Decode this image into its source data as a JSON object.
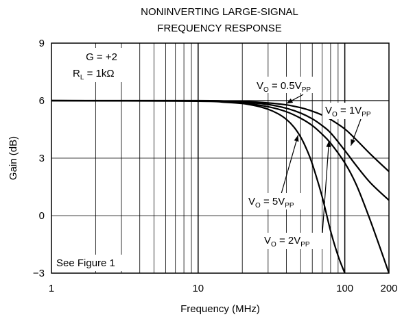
{
  "chart_data": {
    "type": "line",
    "title": [
      "NONINVERTING LARGE-SIGNAL",
      "FREQUENCY RESPONSE"
    ],
    "xlabel": "Frequency (MHz)",
    "ylabel": "Gain (dB)",
    "x_scale": "log",
    "xlim": [
      1,
      200
    ],
    "ylim": [
      -3,
      9
    ],
    "x_ticks": [
      1,
      10,
      100,
      200
    ],
    "x_tick_labels": [
      "1",
      "10",
      "100",
      "200"
    ],
    "y_ticks": [
      -3,
      0,
      3,
      6,
      9
    ],
    "y_tick_labels": [
      "−3",
      "0",
      "3",
      "6",
      "9"
    ],
    "grid": true,
    "annotations": {
      "gain": "G = +2",
      "load_main": "R",
      "load_sub": "L",
      "load_value": " = 1kΩ",
      "figure_ref": "See Figure 1"
    },
    "series": [
      {
        "name": "0.5",
        "label_main": "V",
        "label_sub1": "O",
        "label_mid": " = 0.5V",
        "label_sub2": "PP",
        "x": [
          1,
          10,
          15,
          20,
          30,
          40,
          50,
          60,
          70,
          80,
          100,
          120,
          150,
          200
        ],
        "y": [
          6.0,
          6.0,
          5.98,
          5.96,
          5.88,
          5.78,
          5.63,
          5.45,
          5.25,
          5.02,
          4.52,
          3.95,
          3.2,
          2.3
        ]
      },
      {
        "name": "1",
        "label_main": "V",
        "label_sub1": "O",
        "label_mid": " = 1V",
        "label_sub2": "PP",
        "x": [
          1,
          10,
          15,
          20,
          30,
          40,
          50,
          60,
          70,
          80,
          100,
          120,
          150,
          200
        ],
        "y": [
          6.0,
          5.99,
          5.96,
          5.92,
          5.8,
          5.6,
          5.35,
          5.05,
          4.7,
          4.32,
          3.4,
          2.6,
          1.7,
          0.8
        ]
      },
      {
        "name": "2",
        "label_main": "V",
        "label_sub1": "O",
        "label_mid": " = 2V",
        "label_sub2": "PP",
        "x": [
          1,
          10,
          15,
          20,
          30,
          40,
          50,
          60,
          70,
          80,
          100,
          120,
          150,
          200
        ],
        "y": [
          6.0,
          5.98,
          5.94,
          5.88,
          5.68,
          5.42,
          5.08,
          4.7,
          4.25,
          3.78,
          2.75,
          1.6,
          -0.3,
          -3.0
        ]
      },
      {
        "name": "5",
        "label_main": "V",
        "label_sub1": "O",
        "label_mid": " = 5V",
        "label_sub2": "PP",
        "x": [
          1,
          10,
          15,
          20,
          25,
          30,
          35,
          40,
          45,
          50,
          55,
          60,
          70,
          80,
          90,
          100
        ],
        "y": [
          6.0,
          5.97,
          5.92,
          5.85,
          5.72,
          5.55,
          5.32,
          5.02,
          4.62,
          4.1,
          3.45,
          2.7,
          1.0,
          -0.8,
          -2.1,
          -3.0
        ]
      }
    ]
  }
}
